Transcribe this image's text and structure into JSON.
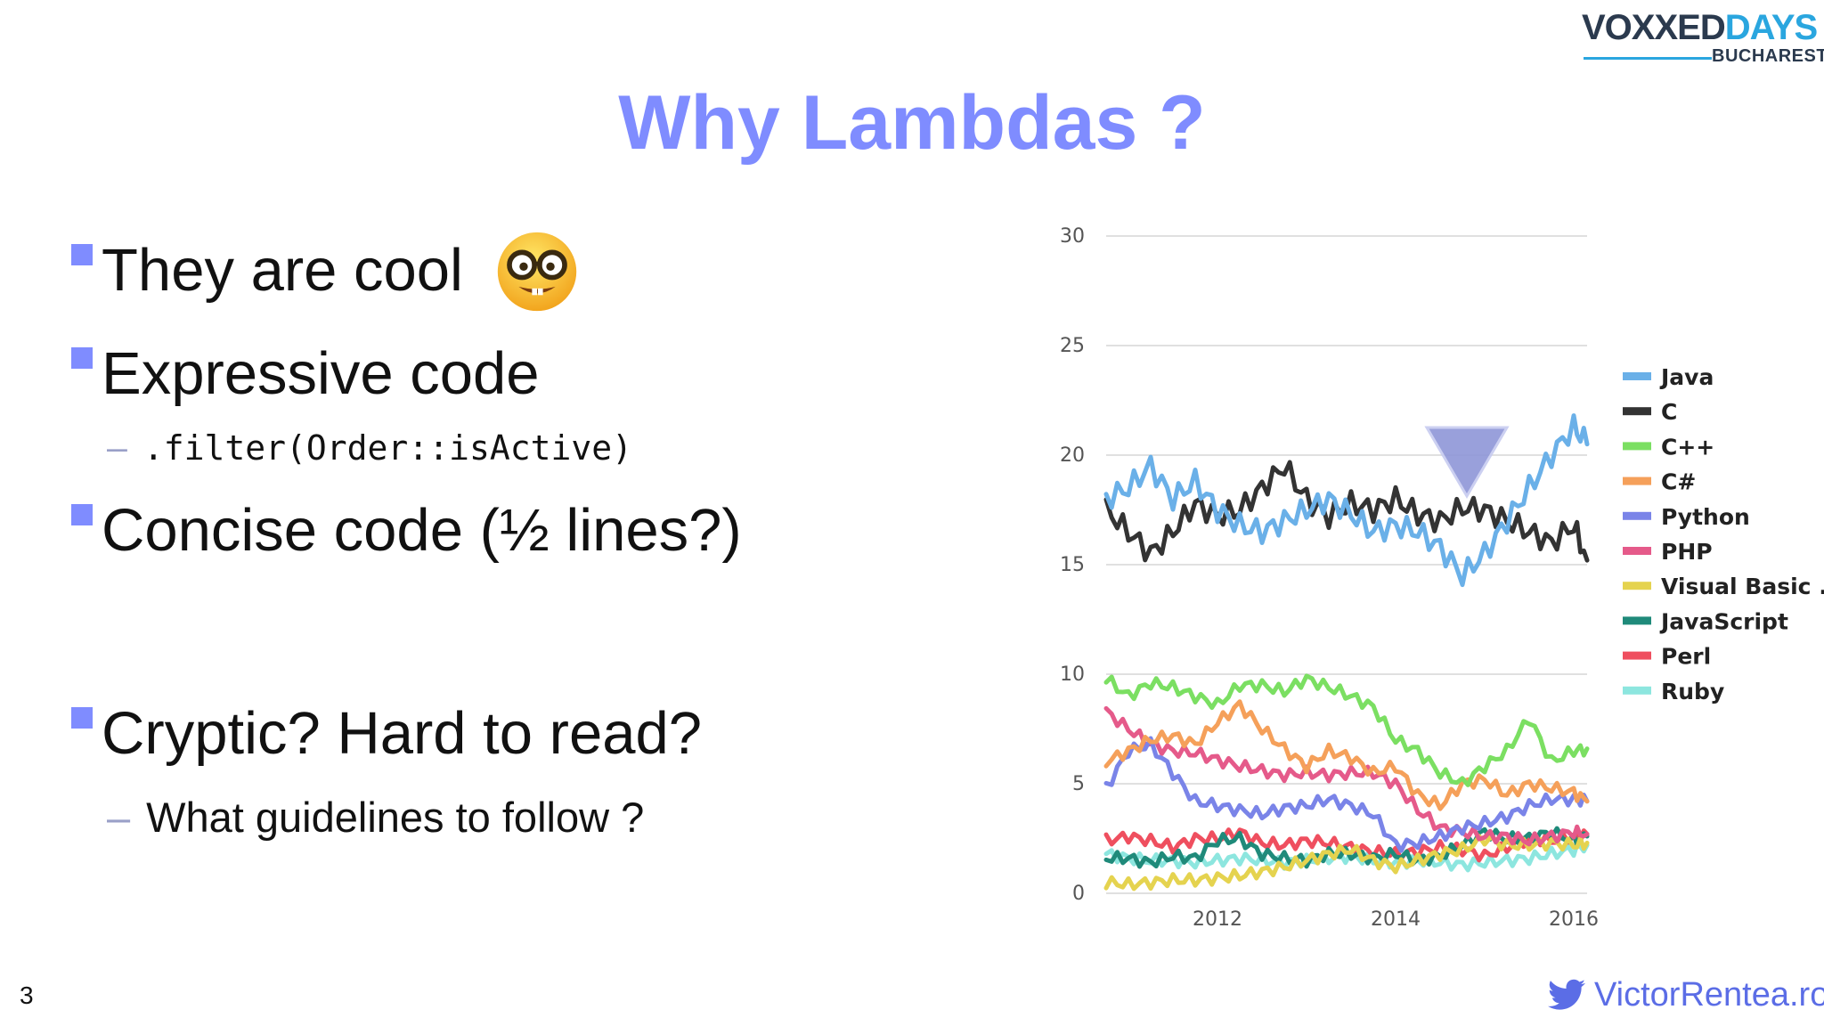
{
  "logo": {
    "part1": "VOXXED",
    "part2": "DAYS",
    "sub": "BUCHAREST"
  },
  "title": "Why Lambdas ?",
  "bullets": [
    {
      "text": "They are cool"
    },
    {
      "text": "Expressive code",
      "sub": ".filter(Order::isActive)"
    },
    {
      "text": "Concise code (½ lines?)"
    },
    {
      "text": "Cryptic? Hard to read?",
      "sub": "What guidelines to follow ?"
    }
  ],
  "emoji": "nerd-face-emoji",
  "page_number": "3",
  "footer": "VictorRentea.ro",
  "colors": {
    "accent": "#7f8cff",
    "footer": "#5b6de6"
  },
  "chart_data": {
    "type": "line",
    "x": [
      2010.75,
      2011.0,
      2011.25,
      2011.5,
      2011.75,
      2012.0,
      2012.25,
      2012.5,
      2012.75,
      2013.0,
      2013.25,
      2013.5,
      2013.75,
      2014.0,
      2014.25,
      2014.5,
      2014.75,
      2015.0,
      2015.25,
      2015.5,
      2015.75,
      2016.0,
      2016.15
    ],
    "xticks": [
      "2012",
      "2014",
      "2016"
    ],
    "xtick_values": [
      2012,
      2014,
      2016
    ],
    "ylim": [
      0,
      30
    ],
    "yticks": [
      0,
      5,
      10,
      15,
      20,
      25,
      30
    ],
    "grid": true,
    "legend": "right",
    "series": [
      {
        "name": "Java",
        "color": "#6ab0e8",
        "values": [
          18,
          18.5,
          19.5,
          18,
          18.8,
          17.5,
          16.8,
          16.5,
          17,
          17.5,
          18,
          17.3,
          16.5,
          16.8,
          16.5,
          15.8,
          14.5,
          15.5,
          17,
          18.5,
          20,
          21.3,
          20.5
        ]
      },
      {
        "name": "C",
        "color": "#333333",
        "values": [
          17.5,
          16.5,
          15.5,
          16.5,
          17.8,
          17.2,
          17.5,
          18.5,
          19.5,
          18,
          17.2,
          17.8,
          17.5,
          18,
          17.3,
          17,
          17.6,
          17.5,
          17,
          16.5,
          16,
          16.8,
          15.2
        ]
      },
      {
        "name": "C++",
        "color": "#7bdf62",
        "values": [
          9.8,
          9,
          9.6,
          9.4,
          9,
          8.6,
          9.5,
          9.5,
          9.2,
          9.8,
          9.4,
          9,
          8.5,
          7,
          6.5,
          5.5,
          5,
          5.8,
          6.5,
          8,
          6,
          6.5,
          6.6
        ]
      },
      {
        "name": "C#",
        "color": "#f5a05a",
        "values": [
          6,
          6.5,
          7,
          7.2,
          6.8,
          7.8,
          8.6,
          7.5,
          6.6,
          5.8,
          6.5,
          6.2,
          5.5,
          5.8,
          4.5,
          4,
          5,
          5.2,
          4.5,
          5,
          4.8,
          4.6,
          4.2
        ]
      },
      {
        "name": "Python",
        "color": "#7a84e8",
        "values": [
          4.8,
          6.5,
          6.8,
          5.5,
          4.2,
          4,
          3.8,
          3.6,
          3.9,
          4,
          4.3,
          4,
          3.6,
          2.2,
          2.3,
          2.6,
          3,
          3.2,
          3.5,
          4,
          4.3,
          4.3,
          4.2
        ]
      },
      {
        "name": "PHP",
        "color": "#e55a8a",
        "values": [
          8.3,
          7.5,
          6.8,
          6.5,
          6.4,
          6.1,
          5.8,
          5.6,
          5.4,
          5.5,
          5.4,
          5.5,
          5.5,
          5,
          3.8,
          3,
          2.8,
          2.6,
          2.6,
          2.4,
          2.6,
          2.8,
          2.7
        ]
      },
      {
        "name": "Visual Basic .NET",
        "color": "#e5d34f",
        "values": [
          0.5,
          0.4,
          0.5,
          0.6,
          0.6,
          0.7,
          0.8,
          1,
          1.2,
          1.5,
          1.8,
          2,
          1.5,
          1.2,
          1.5,
          1.8,
          2,
          2.5,
          2.2,
          2.2,
          2.3,
          2.2,
          2.3
        ]
      },
      {
        "name": "JavaScript",
        "color": "#1f8a7a",
        "values": [
          1.6,
          1.6,
          1.4,
          1.7,
          1.6,
          2.4,
          2.5,
          1.8,
          1.6,
          1.5,
          1.8,
          1.8,
          1.6,
          1.8,
          1.5,
          1.7,
          2.2,
          2.8,
          2.5,
          2.5,
          2.8,
          2.4,
          2.6
        ]
      },
      {
        "name": "Perl",
        "color": "#ef4f5f",
        "values": [
          2.4,
          2.6,
          2.4,
          2.1,
          2.5,
          2.5,
          2.8,
          2.3,
          2.2,
          2.4,
          2.3,
          2.1,
          1.9,
          1.8,
          1.9,
          2.1,
          2.0,
          1.7,
          2.1,
          2.5,
          2.4,
          2.6,
          2.7
        ]
      },
      {
        "name": "Ruby",
        "color": "#8de6df",
        "values": [
          1.8,
          1.6,
          1.5,
          1.5,
          1.4,
          1.5,
          1.6,
          1.5,
          1.4,
          1.5,
          1.6,
          1.7,
          1.5,
          1.4,
          1.5,
          1.4,
          1.3,
          1.4,
          1.5,
          1.6,
          1.8,
          2,
          2.2
        ]
      }
    ]
  }
}
